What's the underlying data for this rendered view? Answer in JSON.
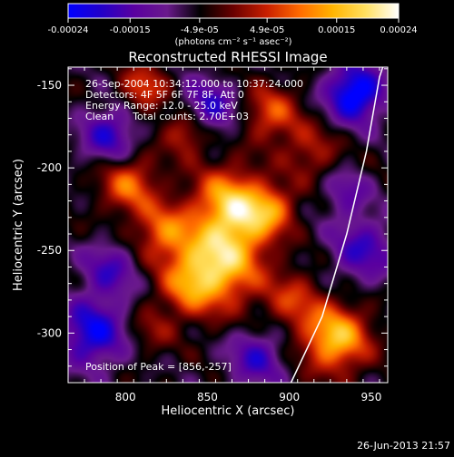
{
  "colorbar": {
    "ticks": [
      "-0.00024",
      "-0.00015",
      "-4.9e-05",
      "4.9e-05",
      "0.00015",
      "0.00024"
    ],
    "unit_label": "(photons cm⁻² s⁻¹ asec⁻²)",
    "range": [
      -0.00024,
      0.00024
    ],
    "colormap": [
      "#0000ff",
      "#2200c8",
      "#5a00a0",
      "#6a1a8c",
      "#000000",
      "#6a0000",
      "#c81e00",
      "#ff6a00",
      "#ffb400",
      "#ffe060",
      "#ffffff"
    ]
  },
  "chart_data": {
    "type": "heatmap",
    "title": "Reconstructed RHESSI Image",
    "xlabel": "Heliocentric X (arcsec)",
    "ylabel": "Heliocentric Y (arcsec)",
    "xlim": [
      765,
      960
    ],
    "ylim": [
      -330,
      -139
    ],
    "x_ticks": [
      "800",
      "850",
      "900",
      "950"
    ],
    "y_ticks": [
      "-150",
      "-200",
      "-250",
      "-300"
    ],
    "annotations": [
      "26-Sep-2004 10:34:12.000 to 10:37:24.000",
      "Detectors: 4F 5F 6F 7F 8F, Att 0",
      "Energy Range: 12.0 - 25.0 keV",
      "Clean      Total counts: 2.70E+03"
    ],
    "peak_label": "Position of Peak = [856,-257]",
    "peak": [
      856,
      -257
    ],
    "limb_curve": [
      [
        901,
        -330
      ],
      [
        920,
        -290
      ],
      [
        935,
        -240
      ],
      [
        947,
        -190
      ],
      [
        955,
        -145
      ],
      [
        957,
        -139
      ]
    ],
    "sources": [
      [
        856,
        -257,
        18,
        1.0
      ],
      [
        928,
        -303,
        14,
        0.9
      ],
      [
        873,
        -228,
        14,
        0.6
      ],
      [
        860,
        -217,
        14,
        0.5
      ],
      [
        823,
        -238,
        12,
        0.55
      ],
      [
        802,
        -210,
        12,
        0.6
      ],
      [
        838,
        -178,
        10,
        0.55
      ],
      [
        811,
        -152,
        10,
        0.5
      ],
      [
        889,
        -167,
        12,
        0.5
      ],
      [
        913,
        -190,
        12,
        0.35
      ],
      [
        902,
        -280,
        12,
        0.4
      ],
      [
        838,
        -273,
        12,
        0.4
      ],
      [
        816,
        -298,
        10,
        0.25
      ],
      [
        890,
        -225,
        10,
        0.45
      ],
      [
        850,
        -165,
        12,
        -0.6
      ],
      [
        780,
        -300,
        14,
        -0.7
      ],
      [
        790,
        -180,
        12,
        -0.55
      ],
      [
        940,
        -155,
        12,
        -0.9
      ],
      [
        945,
        -250,
        14,
        -0.5
      ],
      [
        880,
        -315,
        12,
        -0.5
      ],
      [
        790,
        -262,
        12,
        -0.45
      ],
      [
        935,
        -215,
        10,
        -0.35
      ]
    ]
  },
  "footer": {
    "timestamp": "26-Jun-2013 21:57"
  }
}
